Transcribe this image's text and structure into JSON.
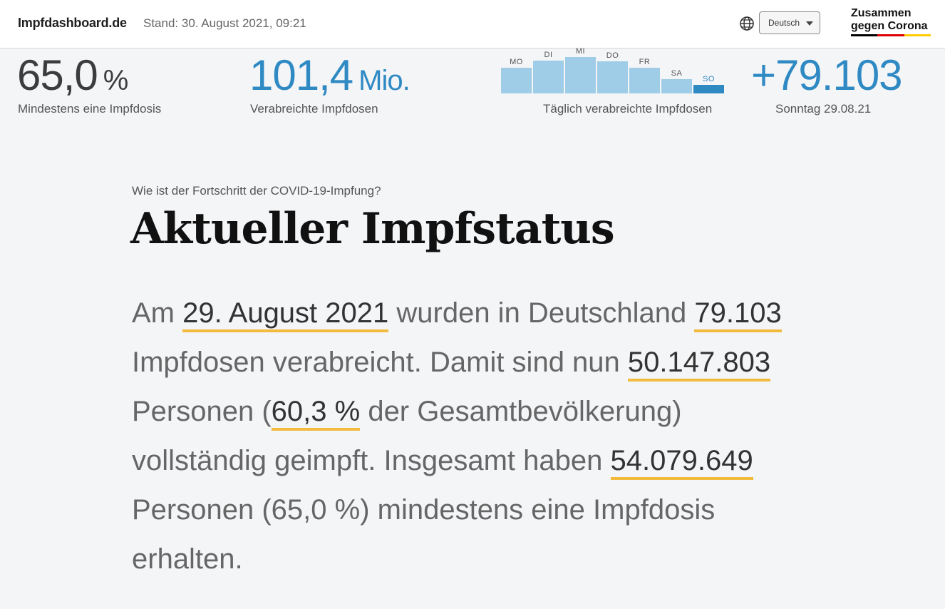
{
  "header": {
    "brand": "Impfdashboard.de",
    "stand": "Stand: 30. August 2021, 09:21",
    "language_icon": "globe-icon",
    "language_selected": "Deutsch",
    "logo_line1": "Zusammen",
    "logo_line2": "gegen Corona"
  },
  "stats": {
    "first_dose_value": "65,0",
    "first_dose_unit": "%",
    "first_dose_label": "Mindestens eine Impfdosis",
    "total_doses_value": "101,4",
    "total_doses_unit": "Mio.",
    "total_doses_label": "Verabreichte Impfdosen",
    "daily_label": "Täglich verabreichte Impfdosen",
    "latest_value": "+79.103",
    "latest_label": "Sonntag 29.08.21"
  },
  "chart_data": {
    "type": "bar",
    "categories": [
      "MO",
      "DI",
      "MI",
      "DO",
      "FR",
      "SA",
      "SO"
    ],
    "values": [
      0.54,
      0.7,
      0.78,
      0.68,
      0.54,
      0.3,
      0.18
    ],
    "highlight_index": 6
  },
  "main": {
    "kicker": "Wie ist der Fortschritt der COVID-19-Impfung?",
    "title": "Aktueller Impfstatus",
    "p1": "Am ",
    "date": "29. August 2021",
    "p2": " wurden in Deutschland ",
    "daily_doses": "79.103",
    "p3": " Impfdosen verabreicht. Damit sind nun ",
    "fully_vaccinated": "50.147.803",
    "p4": " Personen (",
    "fully_pct": "60,3 %",
    "p5": " der Gesamtbevölkerung) vollständig geimpft. Insgesamt haben ",
    "at_least_one": "54.079.649",
    "p6": " Personen (65,0 %) mindestens eine Impfdosis erhalten."
  },
  "colors": {
    "accent_blue": "#2f8ac4",
    "bar_light": "#9fcce6",
    "bar_dark": "#2f8ac4",
    "underline": "#f2bb3e",
    "flag_black": "#000000",
    "flag_red": "#dd0000",
    "flag_gold": "#ffcc00"
  }
}
